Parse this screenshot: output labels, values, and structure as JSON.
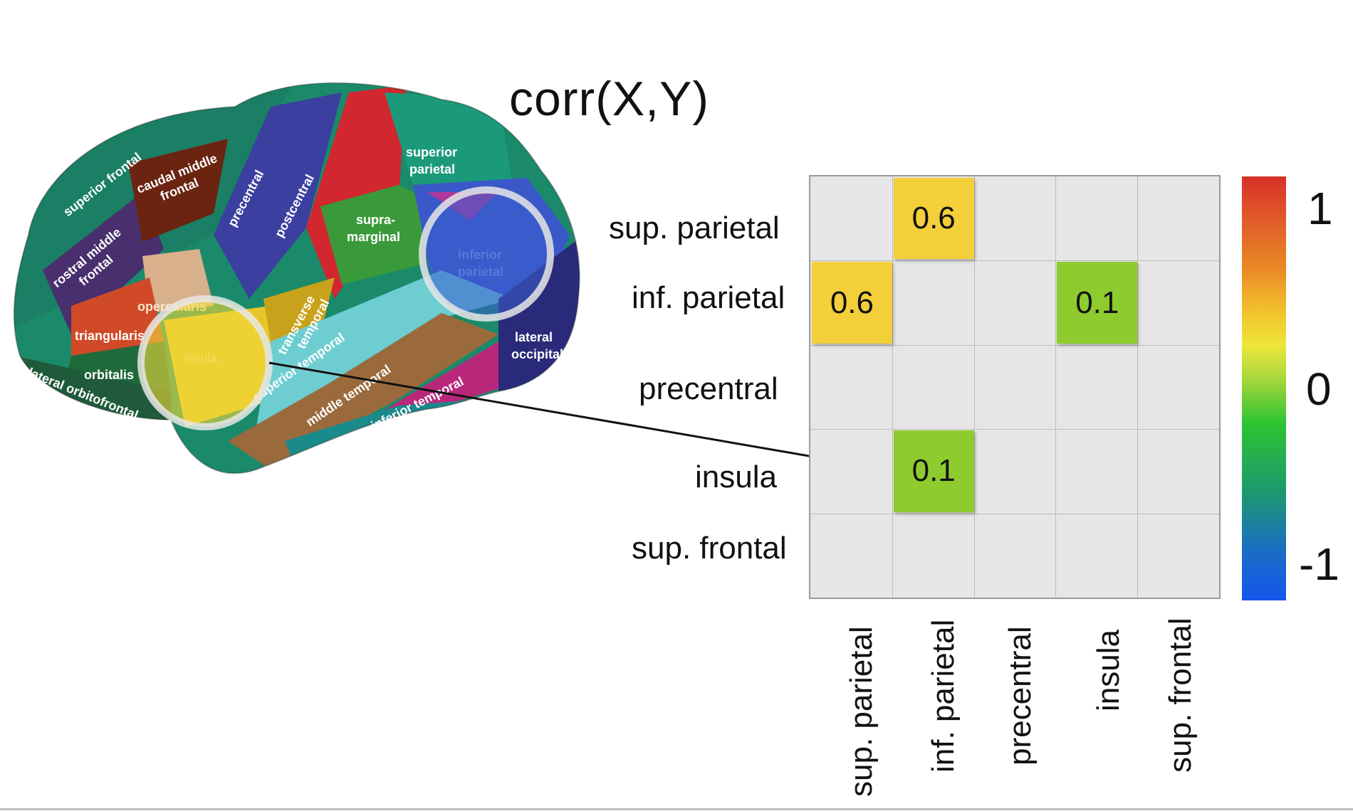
{
  "title": "corr(X,Y)",
  "brain": {
    "regions": [
      {
        "label": "superior frontal",
        "color": "#1a8a6a"
      },
      {
        "label": "caudal middle frontal",
        "color": "#6b2410"
      },
      {
        "label": "rostral middle frontal",
        "color": "#4a2f6e"
      },
      {
        "label": "precentral",
        "color": "#3b3fa0"
      },
      {
        "label": "postcentral",
        "color": "#d22630"
      },
      {
        "label": "superior parietal",
        "color": "#1a9a7a"
      },
      {
        "label": "supra-marginal",
        "color": "#3a9a3a"
      },
      {
        "label": "inferior parietal",
        "color": "#3a58c8"
      },
      {
        "label": "opercularis",
        "color": "#d9b08c"
      },
      {
        "label": "triangularis",
        "color": "#d04a28"
      },
      {
        "label": "orbitalis",
        "color": "#1f6a3a"
      },
      {
        "label": "lateral orbitofrontal",
        "color": "#1f5a3a"
      },
      {
        "label": "insula",
        "color": "#e8c62a"
      },
      {
        "label": "transverse temporal",
        "color": "#c8a21a"
      },
      {
        "label": "superior temporal",
        "color": "#6dcdd0"
      },
      {
        "label": "middle temporal",
        "color": "#9b6a3c"
      },
      {
        "label": "inferior temporal",
        "color": "#b8287a"
      },
      {
        "label": "lateral occipital",
        "color": "#2a2a7a"
      }
    ],
    "highlighted": [
      "insula",
      "inferior parietal"
    ]
  },
  "matrix": {
    "rows": [
      "sup. parietal",
      "inf. parietal",
      "precentral",
      "insula",
      "sup. frontal"
    ],
    "cols": [
      "sup. parietal",
      "inf. parietal",
      "precentral",
      "insula",
      "sup. frontal"
    ],
    "cells": [
      {
        "row": 0,
        "col": 1,
        "value": "0.6",
        "color": "#f3cf3a"
      },
      {
        "row": 1,
        "col": 0,
        "value": "0.6",
        "color": "#f3cf3a"
      },
      {
        "row": 1,
        "col": 3,
        "value": "0.1",
        "color": "#8ecb2e"
      },
      {
        "row": 3,
        "col": 1,
        "value": "0.1",
        "color": "#8ecb2e"
      }
    ],
    "empty_color": "#e6e6e6"
  },
  "colorbar": {
    "ticks": [
      {
        "label": "1",
        "value": 1
      },
      {
        "label": "0",
        "value": 0
      },
      {
        "label": "-1",
        "value": -1
      }
    ]
  },
  "arrow": {
    "from": "insula",
    "to_cell": "insula / inf. parietal"
  }
}
